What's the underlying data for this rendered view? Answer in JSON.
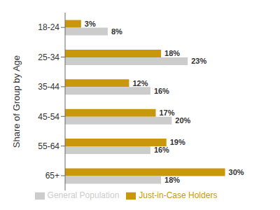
{
  "chart_data": {
    "type": "bar",
    "orientation": "horizontal",
    "categories": [
      "18-24",
      "25-34",
      "35-44",
      "45-54",
      "55-64",
      "65+"
    ],
    "series": [
      {
        "name": "Just-in-Case Holders",
        "color": "#C9970C",
        "values": [
          3,
          18,
          12,
          17,
          19,
          30
        ],
        "value_labels": [
          "3%",
          "18%",
          "12%",
          "17%",
          "19%",
          "30%"
        ]
      },
      {
        "name": "General Population",
        "color": "#CCCCCC",
        "values": [
          8,
          23,
          16,
          20,
          16,
          18
        ],
        "value_labels": [
          "8%",
          "23%",
          "16%",
          "20%",
          "16%",
          "18%"
        ]
      }
    ],
    "ylabel": "Share of Group by Age",
    "xlim": [
      0,
      34
    ],
    "grid": false,
    "legend": "bottom",
    "data_labels": true,
    "tick_labels": "y"
  }
}
